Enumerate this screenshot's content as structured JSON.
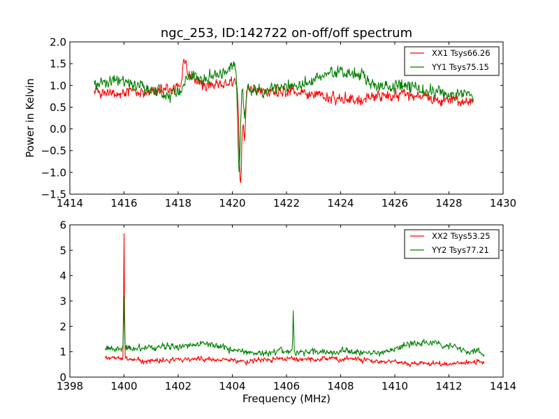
{
  "chart_data": [
    {
      "type": "line",
      "title": "ngc_253, ID:142722 on-off/off spectrum",
      "xlabel": "",
      "ylabel": "Power in Kelvin",
      "xlim": [
        1414,
        1430
      ],
      "ylim": [
        -1.5,
        2.0
      ],
      "xticks": [
        1414,
        1416,
        1418,
        1420,
        1422,
        1424,
        1426,
        1428,
        1430
      ],
      "xtick_labels": [
        "1414",
        "1416",
        "1418",
        "1420",
        "1422",
        "1424",
        "1426",
        "1428",
        "1430"
      ],
      "yticks": [
        -1.5,
        -1.0,
        -0.5,
        0.0,
        0.5,
        1.0,
        1.5,
        2.0
      ],
      "ytick_labels": [
        "−1.5",
        "−1.0",
        "−0.5",
        "0.0",
        "0.5",
        "1.0",
        "1.5",
        "2.0"
      ],
      "grid": false,
      "legend_position": "top-right",
      "x_range": [
        1414.9,
        1428.9
      ],
      "samples": 700,
      "series": [
        {
          "name": "XX1 Tsys66.26",
          "color": "#ff0000",
          "noise": 0.08,
          "seed": 11,
          "baseline": [
            [
              1414.9,
              0.85
            ],
            [
              1416,
              0.82
            ],
            [
              1417,
              0.85
            ],
            [
              1418.0,
              0.95
            ],
            [
              1418.4,
              1.2
            ],
            [
              1419,
              1.0
            ],
            [
              1419.8,
              1.05
            ],
            [
              1420.1,
              1.1
            ],
            [
              1421,
              0.85
            ],
            [
              1422,
              0.88
            ],
            [
              1423,
              0.8
            ],
            [
              1423.8,
              0.68
            ],
            [
              1424.5,
              0.7
            ],
            [
              1425.5,
              0.78
            ],
            [
              1426.5,
              0.8
            ],
            [
              1427.5,
              0.68
            ],
            [
              1428.9,
              0.62
            ]
          ],
          "features": [
            [
              1418.25,
              0.4,
              0.08
            ],
            [
              1420.3,
              -2.4,
              0.05
            ],
            [
              1420.45,
              -1.1,
              0.04
            ]
          ]
        },
        {
          "name": "YY1 Tsys75.15",
          "color": "#008000",
          "noise": 0.09,
          "seed": 23,
          "baseline": [
            [
              1414.9,
              1.05
            ],
            [
              1416,
              1.08
            ],
            [
              1416.8,
              0.95
            ],
            [
              1417.6,
              0.8
            ],
            [
              1418.1,
              0.85
            ],
            [
              1418.4,
              1.2
            ],
            [
              1419,
              1.2
            ],
            [
              1419.6,
              1.3
            ],
            [
              1420.05,
              1.45
            ],
            [
              1420.2,
              1.4
            ],
            [
              1420.6,
              0.9
            ],
            [
              1421.5,
              0.88
            ],
            [
              1422.2,
              0.95
            ],
            [
              1423,
              1.15
            ],
            [
              1424,
              1.35
            ],
            [
              1424.8,
              1.2
            ],
            [
              1425.5,
              1.0
            ],
            [
              1426.5,
              0.95
            ],
            [
              1427.5,
              0.85
            ],
            [
              1428.9,
              0.78
            ]
          ],
          "features": [
            [
              1420.25,
              -2.3,
              0.05
            ],
            [
              1420.45,
              -0.8,
              0.04
            ]
          ]
        }
      ]
    },
    {
      "type": "line",
      "title": "",
      "xlabel": "Frequency (MHz)",
      "ylabel": "",
      "xlim": [
        1398,
        1414
      ],
      "ylim": [
        0,
        6
      ],
      "xticks": [
        1398,
        1400,
        1402,
        1404,
        1406,
        1408,
        1410,
        1412,
        1414
      ],
      "xtick_labels": [
        "1398",
        "1400",
        "1402",
        "1404",
        "1406",
        "1408",
        "1410",
        "1412",
        "1414"
      ],
      "yticks": [
        0,
        1,
        2,
        3,
        4,
        5,
        6
      ],
      "ytick_labels": [
        "0",
        "1",
        "2",
        "3",
        "4",
        "5",
        "6"
      ],
      "grid": false,
      "legend_position": "top-right",
      "x_range": [
        1399.3,
        1413.3
      ],
      "samples": 700,
      "series": [
        {
          "name": "XX2 Tsys53.25",
          "color": "#ff0000",
          "noise": 0.06,
          "seed": 37,
          "baseline": [
            [
              1399.3,
              0.8
            ],
            [
              1400,
              0.72
            ],
            [
              1401,
              0.62
            ],
            [
              1402.5,
              0.72
            ],
            [
              1403.5,
              0.68
            ],
            [
              1404.5,
              0.62
            ],
            [
              1405.5,
              0.7
            ],
            [
              1407,
              0.7
            ],
            [
              1408.5,
              0.72
            ],
            [
              1409.5,
              0.62
            ],
            [
              1410.5,
              0.55
            ],
            [
              1412,
              0.52
            ],
            [
              1413.3,
              0.62
            ]
          ],
          "features": [
            [
              1400.0,
              4.9,
              0.015
            ]
          ]
        },
        {
          "name": "YY2 Tsys77.21",
          "color": "#008000",
          "noise": 0.08,
          "seed": 51,
          "baseline": [
            [
              1399.3,
              1.1
            ],
            [
              1400.5,
              1.15
            ],
            [
              1401.5,
              1.18
            ],
            [
              1403,
              1.32
            ],
            [
              1404,
              1.1
            ],
            [
              1405,
              0.95
            ],
            [
              1406.5,
              1.0
            ],
            [
              1408,
              1.0
            ],
            [
              1409.5,
              0.95
            ],
            [
              1410.2,
              1.2
            ],
            [
              1411,
              1.42
            ],
            [
              1411.8,
              1.3
            ],
            [
              1412.5,
              1.05
            ],
            [
              1413.3,
              1.0
            ]
          ],
          "features": [
            [
              1400.0,
              2.1,
              0.015
            ],
            [
              1406.25,
              1.5,
              0.015
            ]
          ]
        }
      ]
    }
  ]
}
